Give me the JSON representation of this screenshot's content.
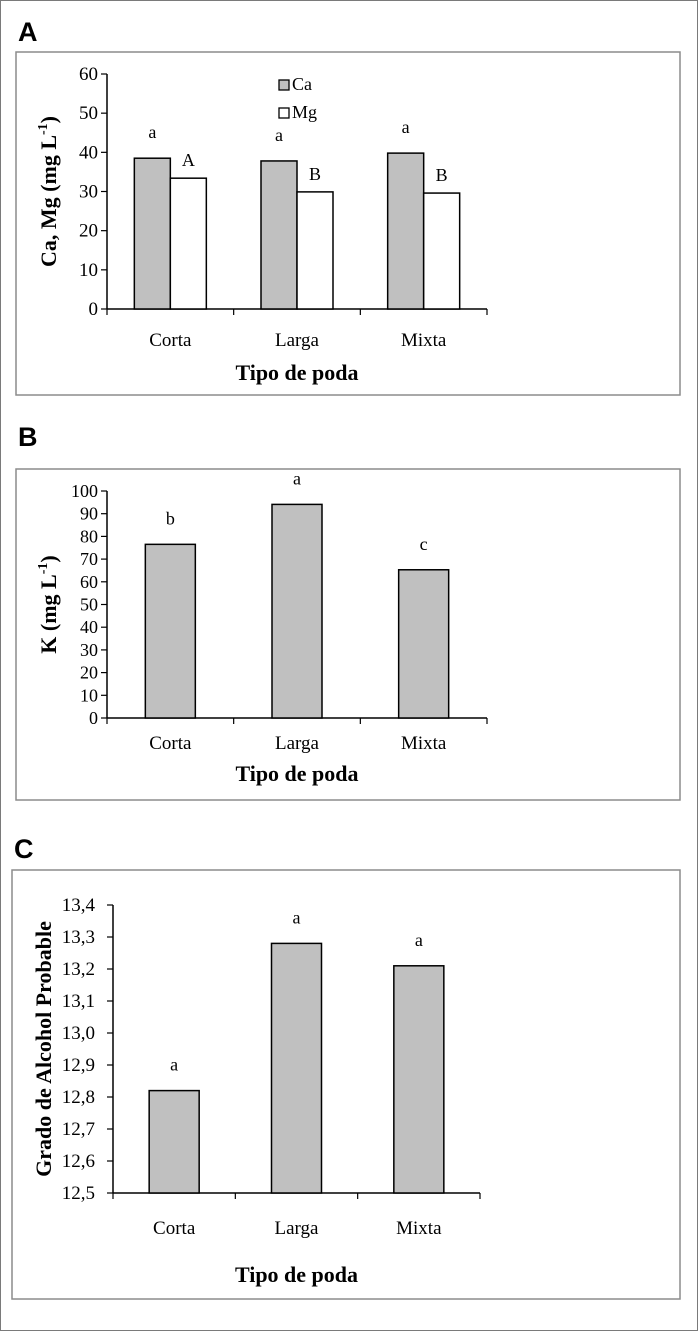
{
  "chart_data": [
    {
      "panel_label": "A",
      "type": "bar",
      "categories": [
        "Corta",
        "Larga",
        "Mixta"
      ],
      "series": [
        {
          "name": "Ca",
          "values": [
            38.5,
            37.8,
            39.8
          ],
          "color": "#c0c0c0",
          "letters": [
            "a",
            "a",
            "a"
          ]
        },
        {
          "name": "Mg",
          "values": [
            33.4,
            29.9,
            29.6
          ],
          "color": "#ffffff",
          "letters": [
            "A",
            "B",
            "B"
          ]
        }
      ],
      "xlabel": "Tipo de poda",
      "ylabel": "Ca, Mg (mg L",
      "ylabel_sup": "-1",
      "ylabel_end": ")",
      "ylim": [
        0,
        60
      ],
      "yticks": [
        "0",
        "10",
        "20",
        "30",
        "40",
        "50",
        "60"
      ],
      "legend": "top-center",
      "grid": false
    },
    {
      "panel_label": "B",
      "type": "bar",
      "categories": [
        "Corta",
        "Larga",
        "Mixta"
      ],
      "series": [
        {
          "values": [
            76.5,
            94.1,
            65.3
          ],
          "color": "#c0c0c0",
          "letters": [
            "b",
            "a",
            "c"
          ]
        }
      ],
      "xlabel": "Tipo de poda",
      "ylabel": "K (mg L",
      "ylabel_sup": "-1",
      "ylabel_end": ")",
      "ylim": [
        0,
        100
      ],
      "yticks": [
        "0",
        "10",
        "20",
        "30",
        "40",
        "50",
        "60",
        "70",
        "80",
        "90",
        "100"
      ],
      "grid": false
    },
    {
      "panel_label": "C",
      "type": "bar",
      "categories": [
        "Corta",
        "Larga",
        "Mixta"
      ],
      "series": [
        {
          "values": [
            12.82,
            13.28,
            13.21
          ],
          "color": "#c0c0c0",
          "letters": [
            "a",
            "a",
            "a"
          ]
        }
      ],
      "xlabel": "Tipo de poda",
      "ylabel": "Grado de Alcohol Probable",
      "ylabel_sup": "",
      "ylabel_end": "",
      "ylim": [
        12.5,
        13.4
      ],
      "yticks": [
        "12,5",
        "12,6",
        "12,7",
        "12,8",
        "12,9",
        "13,0",
        "13,1",
        "13,2",
        "13,3",
        "13,4"
      ],
      "grid": false
    }
  ]
}
